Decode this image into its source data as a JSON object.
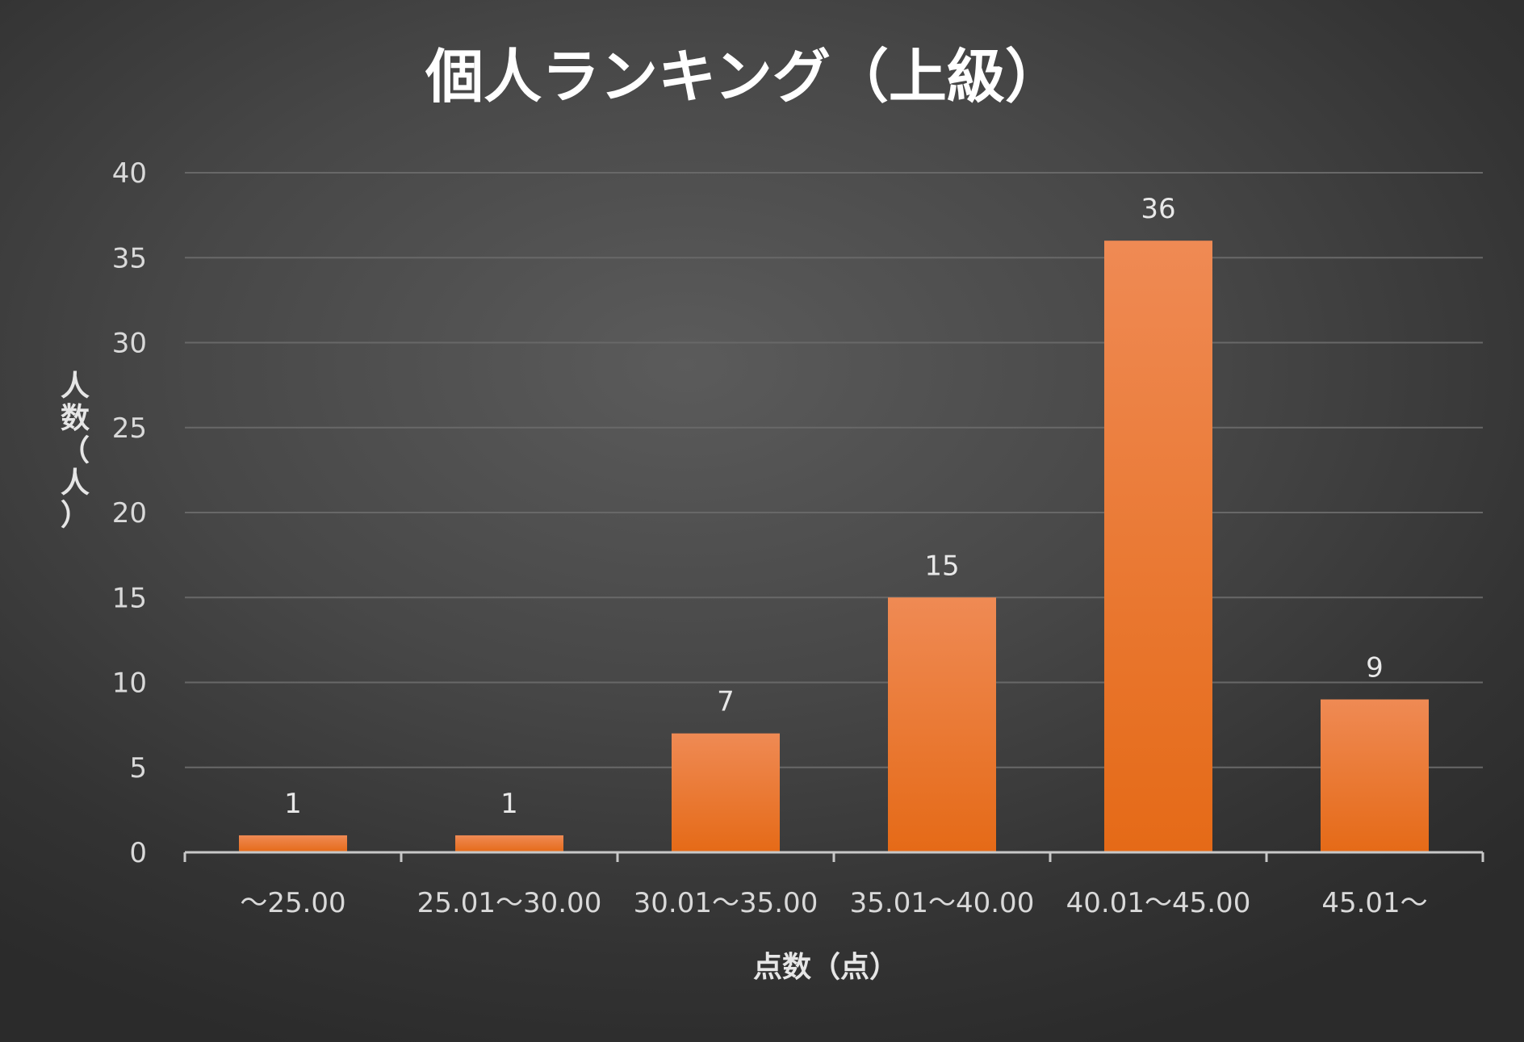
{
  "chart_data": {
    "type": "bar",
    "title": "個人ランキング（上級）",
    "xlabel": "点数（点）",
    "ylabel": "人数（人）",
    "categories": [
      "～25.00",
      "25.01～30.00",
      "30.01～35.00",
      "35.01～40.00",
      "40.01～45.00",
      "45.01～"
    ],
    "values": [
      1,
      1,
      7,
      15,
      36,
      9
    ],
    "ylim": [
      0,
      40
    ],
    "yticks": [
      0,
      5,
      10,
      15,
      20,
      25,
      30,
      35,
      40
    ],
    "grid": true,
    "data_labels": true,
    "legend": "none",
    "colors": {
      "bar_top": "#ef8a54",
      "bar_bottom": "#e56a17",
      "gridline": "#686868",
      "axis": "#c8c8c8",
      "background": "#474747"
    }
  }
}
